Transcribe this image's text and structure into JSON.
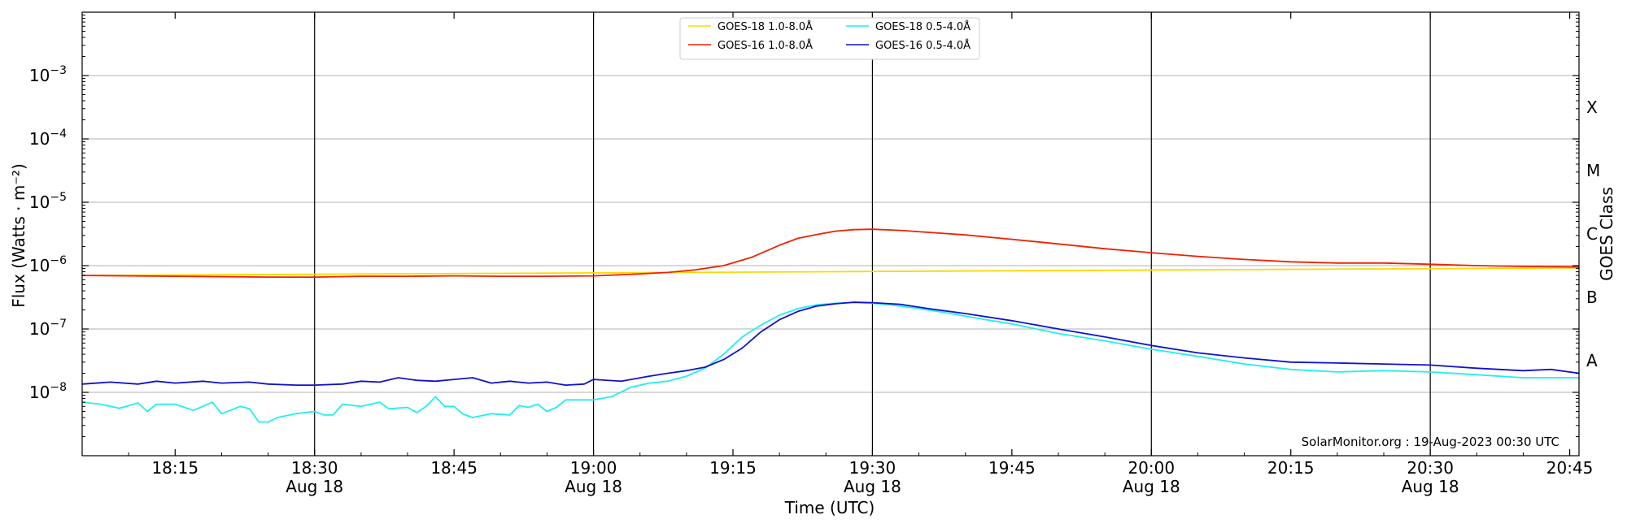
{
  "chart_data": {
    "type": "line",
    "xlabel": "Time (UTC)",
    "ylabel": "Flux (Watts · m⁻²)",
    "right_axis_label": "GOES Class",
    "footer": "SolarMonitor.org : 19-Aug-2023 00:30 UTC",
    "x_unit": "minutes from 18:05 UTC, Aug 18",
    "xlim": [
      "18:05",
      "20:46"
    ],
    "ylim": [
      "1e-9",
      "1e-2"
    ],
    "y_scale": "log",
    "grid": "horizontal at decades",
    "legend_position": "top-center",
    "x_ticks": [
      {
        "label": "18:15",
        "date": ""
      },
      {
        "label": "18:30",
        "date": "Aug 18"
      },
      {
        "label": "18:45",
        "date": ""
      },
      {
        "label": "19:00",
        "date": "Aug 18"
      },
      {
        "label": "19:15",
        "date": ""
      },
      {
        "label": "19:30",
        "date": "Aug 18"
      },
      {
        "label": "19:45",
        "date": ""
      },
      {
        "label": "20:00",
        "date": "Aug 18"
      },
      {
        "label": "20:15",
        "date": ""
      },
      {
        "label": "20:30",
        "date": "Aug 18"
      },
      {
        "label": "20:45",
        "date": ""
      }
    ],
    "y_ticks": [
      {
        "base": "10",
        "exp": "−3"
      },
      {
        "base": "10",
        "exp": "−4"
      },
      {
        "base": "10",
        "exp": "−5"
      },
      {
        "base": "10",
        "exp": "−6"
      },
      {
        "base": "10",
        "exp": "−7"
      },
      {
        "base": "10",
        "exp": "−8"
      }
    ],
    "goes_classes": [
      "X",
      "M",
      "C",
      "B",
      "A"
    ],
    "legend": [
      "GOES-18 1.0-8.0Å",
      "GOES-16 1.0-8.0Å",
      "GOES-18 0.5-4.0Å",
      "GOES-16 0.5-4.0Å"
    ],
    "series": [
      {
        "name": "GOES-18 1.0-8.0Å",
        "color": "#ffd700",
        "points": [
          [
            "18:05",
            7e-07
          ],
          [
            "20:46",
            9.2e-07
          ]
        ]
      },
      {
        "name": "GOES-16 1.0-8.0Å",
        "color": "#ee2200",
        "points": [
          [
            "18:05",
            7e-07
          ],
          [
            "18:15",
            6.8e-07
          ],
          [
            "18:25",
            6.6e-07
          ],
          [
            "18:30",
            6.6e-07
          ],
          [
            "18:35",
            6.8e-07
          ],
          [
            "18:40",
            6.8e-07
          ],
          [
            "18:45",
            6.9e-07
          ],
          [
            "18:50",
            6.8e-07
          ],
          [
            "18:55",
            6.8e-07
          ],
          [
            "19:00",
            6.9e-07
          ],
          [
            "19:05",
            7.4e-07
          ],
          [
            "19:08",
            7.8e-07
          ],
          [
            "19:11",
            8.6e-07
          ],
          [
            "19:14",
            1e-06
          ],
          [
            "19:17",
            1.35e-06
          ],
          [
            "19:20",
            2.1e-06
          ],
          [
            "19:22",
            2.7e-06
          ],
          [
            "19:24",
            3.1e-06
          ],
          [
            "19:26",
            3.5e-06
          ],
          [
            "19:28",
            3.7e-06
          ],
          [
            "19:30",
            3.75e-06
          ],
          [
            "19:33",
            3.6e-06
          ],
          [
            "19:36",
            3.35e-06
          ],
          [
            "19:40",
            3.05e-06
          ],
          [
            "19:45",
            2.6e-06
          ],
          [
            "19:50",
            2.2e-06
          ],
          [
            "19:55",
            1.85e-06
          ],
          [
            "20:00",
            1.6e-06
          ],
          [
            "20:05",
            1.4e-06
          ],
          [
            "20:10",
            1.25e-06
          ],
          [
            "20:15",
            1.15e-06
          ],
          [
            "20:20",
            1.1e-06
          ],
          [
            "20:25",
            1.1e-06
          ],
          [
            "20:30",
            1.05e-06
          ],
          [
            "20:35",
            1e-06
          ],
          [
            "20:40",
            9.7e-07
          ],
          [
            "20:46",
            9.5e-07
          ]
        ]
      },
      {
        "name": "GOES-18 0.5-4.0Å",
        "color": "#22eeee",
        "points": [
          [
            "18:05",
            7e-09
          ],
          [
            "18:07",
            6.5e-09
          ],
          [
            "18:09",
            5.6e-09
          ],
          [
            "18:11",
            6.8e-09
          ],
          [
            "18:12",
            5e-09
          ],
          [
            "18:13",
            6.5e-09
          ],
          [
            "18:15",
            6.5e-09
          ],
          [
            "18:17",
            5.2e-09
          ],
          [
            "18:19",
            7e-09
          ],
          [
            "18:20",
            4.6e-09
          ],
          [
            "18:22",
            6e-09
          ],
          [
            "18:23",
            5.5e-09
          ],
          [
            "18:24",
            3.4e-09
          ],
          [
            "18:25",
            3.4e-09
          ],
          [
            "18:26",
            4e-09
          ],
          [
            "18:28",
            4.6e-09
          ],
          [
            "18:30",
            5e-09
          ],
          [
            "18:31",
            4.4e-09
          ],
          [
            "18:32",
            4.4e-09
          ],
          [
            "18:33",
            6.5e-09
          ],
          [
            "18:35",
            6e-09
          ],
          [
            "18:37",
            7e-09
          ],
          [
            "18:38",
            5.5e-09
          ],
          [
            "18:40",
            5.8e-09
          ],
          [
            "18:41",
            4.8e-09
          ],
          [
            "18:42",
            6e-09
          ],
          [
            "18:43",
            8.5e-09
          ],
          [
            "18:44",
            6e-09
          ],
          [
            "18:45",
            6e-09
          ],
          [
            "18:46",
            4.5e-09
          ],
          [
            "18:47",
            4e-09
          ],
          [
            "18:49",
            4.6e-09
          ],
          [
            "18:51",
            4.4e-09
          ],
          [
            "18:52",
            6.2e-09
          ],
          [
            "18:53",
            5.8e-09
          ],
          [
            "18:54",
            6.5e-09
          ],
          [
            "18:55",
            5e-09
          ],
          [
            "18:56",
            5.8e-09
          ],
          [
            "18:57",
            7.6e-09
          ],
          [
            "19:00",
            7.6e-09
          ],
          [
            "19:02",
            8.6e-09
          ],
          [
            "19:04",
            1.2e-08
          ],
          [
            "19:06",
            1.4e-08
          ],
          [
            "19:08",
            1.5e-08
          ],
          [
            "19:10",
            1.8e-08
          ],
          [
            "19:12",
            2.4e-08
          ],
          [
            "19:14",
            4e-08
          ],
          [
            "19:16",
            7.5e-08
          ],
          [
            "19:18",
            1.15e-07
          ],
          [
            "19:20",
            1.65e-07
          ],
          [
            "19:22",
            2.1e-07
          ],
          [
            "19:24",
            2.4e-07
          ],
          [
            "19:26",
            2.55e-07
          ],
          [
            "19:28",
            2.6e-07
          ],
          [
            "19:30",
            2.55e-07
          ],
          [
            "19:32",
            2.4e-07
          ],
          [
            "19:35",
            2.1e-07
          ],
          [
            "19:38",
            1.8e-07
          ],
          [
            "19:41",
            1.5e-07
          ],
          [
            "19:45",
            1.2e-07
          ],
          [
            "19:50",
            8.5e-08
          ],
          [
            "19:55",
            6.5e-08
          ],
          [
            "20:00",
            4.8e-08
          ],
          [
            "20:05",
            3.7e-08
          ],
          [
            "20:10",
            2.8e-08
          ],
          [
            "20:15",
            2.3e-08
          ],
          [
            "20:20",
            2.1e-08
          ],
          [
            "20:25",
            2.2e-08
          ],
          [
            "20:30",
            2.1e-08
          ],
          [
            "20:35",
            1.9e-08
          ],
          [
            "20:40",
            1.7e-08
          ],
          [
            "20:46",
            1.7e-08
          ]
        ]
      },
      {
        "name": "GOES-16 0.5-4.0Å",
        "color": "#1111cc",
        "points": [
          [
            "18:05",
            1.35e-08
          ],
          [
            "18:08",
            1.45e-08
          ],
          [
            "18:11",
            1.35e-08
          ],
          [
            "18:13",
            1.5e-08
          ],
          [
            "18:15",
            1.4e-08
          ],
          [
            "18:18",
            1.5e-08
          ],
          [
            "18:20",
            1.4e-08
          ],
          [
            "18:23",
            1.45e-08
          ],
          [
            "18:25",
            1.35e-08
          ],
          [
            "18:28",
            1.3e-08
          ],
          [
            "18:30",
            1.3e-08
          ],
          [
            "18:33",
            1.35e-08
          ],
          [
            "18:35",
            1.5e-08
          ],
          [
            "18:37",
            1.45e-08
          ],
          [
            "18:39",
            1.7e-08
          ],
          [
            "18:41",
            1.55e-08
          ],
          [
            "18:43",
            1.5e-08
          ],
          [
            "18:45",
            1.6e-08
          ],
          [
            "18:47",
            1.7e-08
          ],
          [
            "18:49",
            1.4e-08
          ],
          [
            "18:51",
            1.5e-08
          ],
          [
            "18:53",
            1.4e-08
          ],
          [
            "18:55",
            1.45e-08
          ],
          [
            "18:57",
            1.3e-08
          ],
          [
            "18:59",
            1.35e-08
          ],
          [
            "19:00",
            1.6e-08
          ],
          [
            "19:03",
            1.5e-08
          ],
          [
            "19:06",
            1.8e-08
          ],
          [
            "19:08",
            2e-08
          ],
          [
            "19:10",
            2.2e-08
          ],
          [
            "19:12",
            2.5e-08
          ],
          [
            "19:14",
            3.3e-08
          ],
          [
            "19:16",
            5e-08
          ],
          [
            "19:18",
            9e-08
          ],
          [
            "19:20",
            1.4e-07
          ],
          [
            "19:22",
            1.9e-07
          ],
          [
            "19:24",
            2.3e-07
          ],
          [
            "19:26",
            2.5e-07
          ],
          [
            "19:28",
            2.65e-07
          ],
          [
            "19:30",
            2.6e-07
          ],
          [
            "19:33",
            2.45e-07
          ],
          [
            "19:36",
            2.1e-07
          ],
          [
            "19:40",
            1.75e-07
          ],
          [
            "19:45",
            1.35e-07
          ],
          [
            "19:50",
            1e-07
          ],
          [
            "19:55",
            7.5e-08
          ],
          [
            "20:00",
            5.5e-08
          ],
          [
            "20:05",
            4.2e-08
          ],
          [
            "20:10",
            3.5e-08
          ],
          [
            "20:15",
            3e-08
          ],
          [
            "20:20",
            2.9e-08
          ],
          [
            "20:25",
            2.8e-08
          ],
          [
            "20:30",
            2.7e-08
          ],
          [
            "20:35",
            2.4e-08
          ],
          [
            "20:40",
            2.2e-08
          ],
          [
            "20:43",
            2.3e-08
          ],
          [
            "20:46",
            2e-08
          ]
        ]
      }
    ]
  }
}
